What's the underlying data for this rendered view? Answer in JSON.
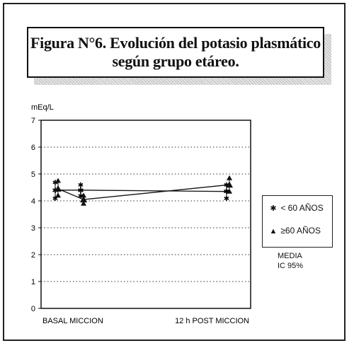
{
  "title_lines": [
    "Figura N°6. Evolución del potasio plasmático",
    "según grupo etáreo."
  ],
  "ylabel": "mEq/L",
  "legend": [
    {
      "symbol": "✱",
      "label": "< 60 AÑOS"
    },
    {
      "symbol": "▲",
      "label": "≥60 AÑOS"
    }
  ],
  "notes": [
    "MEDIA",
    "IC 95%"
  ],
  "colors": {
    "ink": "#111111",
    "grid": "#333333",
    "shade": "#c8c8c8"
  },
  "chart_data": {
    "type": "line",
    "title": "Figura N°6. Evolución del potasio plasmático según grupo etáreo.",
    "ylabel": "mEq/L",
    "xlabel": "",
    "categories": [
      "BASAL",
      "MICCION",
      "12 h POST MICCION"
    ],
    "x_tick_labels": [
      "BASAL MICCION",
      "12 h POST MICCION"
    ],
    "ylim": [
      0,
      7
    ],
    "yticks": [
      0,
      1,
      2,
      3,
      4,
      5,
      6,
      7
    ],
    "grid": "dotted horizontal",
    "legend_position": "right",
    "series": [
      {
        "name": "< 60 AÑOS",
        "marker": "asterisk",
        "values": [
          4.4,
          4.4,
          4.35
        ],
        "ci": [
          [
            4.1,
            4.7
          ],
          [
            4.2,
            4.6
          ],
          [
            4.1,
            4.6
          ]
        ]
      },
      {
        "name": "≥60 AÑOS",
        "marker": "triangle",
        "values": [
          4.45,
          4.05,
          4.6
        ],
        "ci": [
          [
            4.2,
            4.75
          ],
          [
            3.9,
            4.2
          ],
          [
            4.35,
            4.85
          ]
        ]
      }
    ]
  }
}
